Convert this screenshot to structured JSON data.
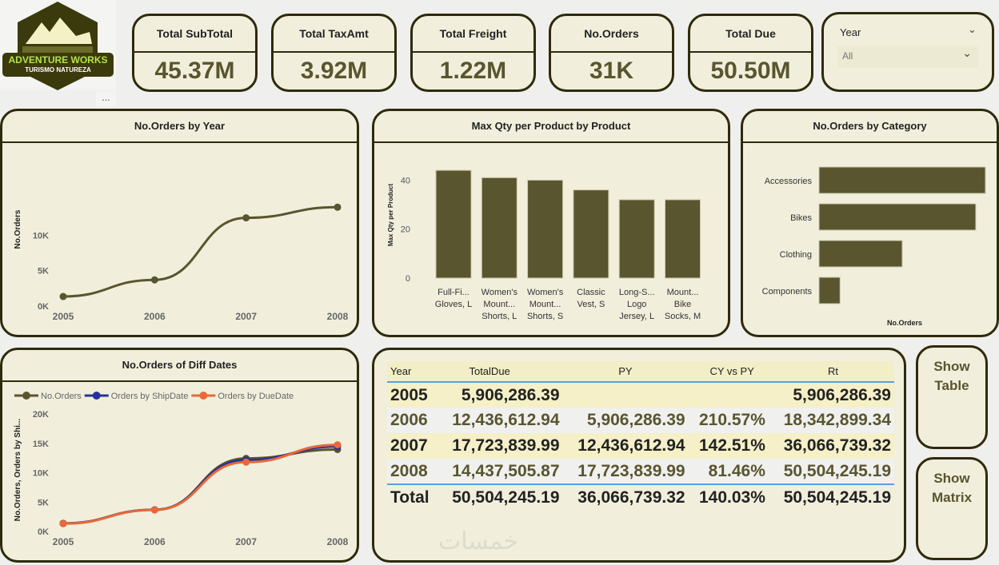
{
  "logo": {
    "line1": "ADVENTURE WORKS",
    "line2": "TURISMO NATUREZA"
  },
  "more_label": "...",
  "kpis": [
    {
      "title": "Total SubTotal",
      "value": "45.37M"
    },
    {
      "title": "Total TaxAmt",
      "value": "3.92M"
    },
    {
      "title": "Total Freight",
      "value": "1.22M"
    },
    {
      "title": "No.Orders",
      "value": "31K"
    },
    {
      "title": "Total Due",
      "value": "50.50M"
    }
  ],
  "slicer": {
    "label": "Year",
    "value": "All"
  },
  "colors": {
    "olive": "#59552f",
    "blue": "#28309a",
    "orange": "#e8683a",
    "card_bg": "#f1efdc",
    "border": "#2e2a0b"
  },
  "chart_data": [
    {
      "type": "line",
      "title": "No.Orders by Year",
      "ylabel": "No.Orders",
      "categories": [
        "2005",
        "2006",
        "2007",
        "2008"
      ],
      "yticks": [
        "0K",
        "5K",
        "10K"
      ],
      "ylim": [
        0,
        15000
      ],
      "series": [
        {
          "values": [
            1350,
            3700,
            12450,
            13950
          ]
        }
      ]
    },
    {
      "type": "bar",
      "title": "Max Qty per Product by Product",
      "ylabel": "Max Qty per Product",
      "yticks": [
        "0",
        "20",
        "40"
      ],
      "ylim": [
        0,
        46
      ],
      "categories": [
        [
          "Full-Fi...",
          "Gloves, L"
        ],
        [
          "Women's",
          "Mount...",
          "Shorts, L"
        ],
        [
          "Women's",
          "Mount...",
          "Shorts, S"
        ],
        [
          "Classic",
          "Vest, S"
        ],
        [
          "Long-S...",
          "Logo",
          "Jersey, L"
        ],
        [
          "Mount...",
          "Bike",
          "Socks, M"
        ]
      ],
      "values": [
        44,
        41,
        40,
        36,
        32,
        32
      ]
    },
    {
      "type": "bar",
      "orientation": "horizontal",
      "title": "No.Orders by Category",
      "xlabel": "No.Orders",
      "categories": [
        "Accessories",
        "Bikes",
        "Clothing",
        "Components"
      ],
      "values": [
        19000,
        17900,
        9500,
        2400
      ]
    },
    {
      "type": "line",
      "title": "No.Orders of Diff Dates",
      "ylabel": "No.Orders, Orders by Shi...",
      "legend": "top-left",
      "categories": [
        "2005",
        "2006",
        "2007",
        "2008"
      ],
      "yticks": [
        "0K",
        "5K",
        "10K",
        "15K",
        "20K"
      ],
      "ylim": [
        0,
        20000
      ],
      "series": [
        {
          "name": "No.Orders",
          "values": [
            1380,
            3690,
            12440,
            13950
          ]
        },
        {
          "name": "Orders by ShipDate",
          "values": [
            1350,
            3680,
            12150,
            14450
          ]
        },
        {
          "name": "Orders by DueDate",
          "values": [
            1320,
            3660,
            11800,
            14750
          ]
        }
      ]
    }
  ],
  "table": {
    "headers": [
      "Year",
      "TotalDue",
      "PY",
      "CY vs PY",
      "Rt"
    ],
    "rows": [
      [
        "2005",
        "5,906,286.39",
        "",
        "",
        "5,906,286.39"
      ],
      [
        "2006",
        "12,436,612.94",
        "5,906,286.39",
        "210.57%",
        "18,342,899.34"
      ],
      [
        "2007",
        "17,723,839.99",
        "12,436,612.94",
        "142.51%",
        "36,066,739.32"
      ],
      [
        "2008",
        "14,437,505.87",
        "17,723,839.99",
        "81.46%",
        "50,504,245.19"
      ]
    ],
    "total": [
      "Total",
      "50,504,245.19",
      "36,066,739.32",
      "140.03%",
      "50,504,245.19"
    ]
  },
  "watermark": "خمسات",
  "buttons": {
    "show_table": [
      "Show",
      "Table"
    ],
    "show_matrix": [
      "Show",
      "Matrix"
    ]
  }
}
